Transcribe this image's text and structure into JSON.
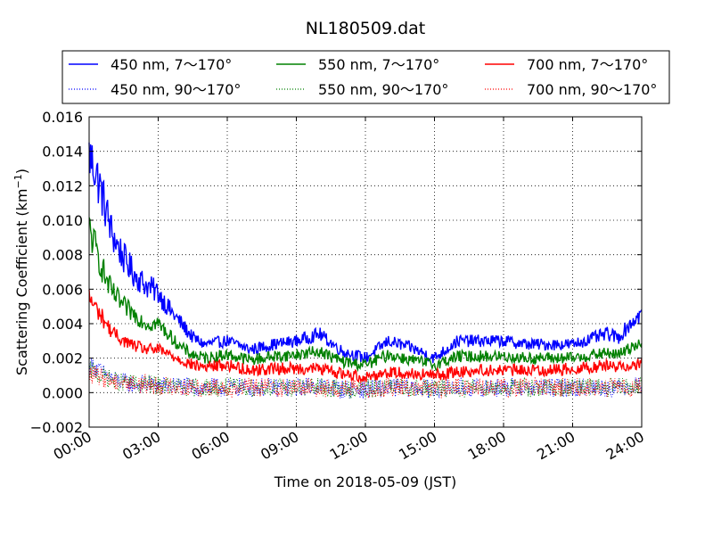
{
  "chart_data": {
    "type": "line",
    "title": "NL180509.dat",
    "xlabel": "Time on 2018-05-09 (JST)",
    "ylabel_main": "Scattering Coefficient (km",
    "ylabel_sup": "−1",
    "ylabel_close": ")",
    "xlim": [
      "00:00",
      "24:00"
    ],
    "ylim": [
      -0.002,
      0.016
    ],
    "x_ticks": [
      "00:00",
      "03:00",
      "06:00",
      "09:00",
      "12:00",
      "15:00",
      "18:00",
      "21:00",
      "24:00"
    ],
    "y_ticks": [
      -0.002,
      0.0,
      0.002,
      0.004,
      0.006,
      0.008,
      0.01,
      0.012,
      0.014,
      0.016
    ],
    "y_tick_labels": [
      "−0.002",
      "0.000",
      "0.002",
      "0.004",
      "0.006",
      "0.008",
      "0.010",
      "0.012",
      "0.014",
      "0.016"
    ],
    "grid": true,
    "legend_position": "top",
    "x_hours": [
      0,
      0.25,
      0.5,
      0.75,
      1,
      1.5,
      2,
      2.5,
      3,
      3.5,
      4,
      4.5,
      5,
      6,
      7,
      8,
      9,
      10,
      11,
      12,
      13,
      14,
      15,
      16,
      17,
      18,
      19,
      20,
      21,
      22,
      22.5,
      23,
      23.5,
      24
    ],
    "series": [
      {
        "name": "450 nm, 7～170°",
        "color": "#0000ff",
        "style": "solid",
        "values": [
          0.0138,
          0.013,
          0.0118,
          0.0105,
          0.0092,
          0.0078,
          0.0068,
          0.0062,
          0.0058,
          0.0048,
          0.004,
          0.0032,
          0.0028,
          0.003,
          0.0025,
          0.0028,
          0.003,
          0.0034,
          0.0024,
          0.002,
          0.003,
          0.0026,
          0.002,
          0.003,
          0.003,
          0.003,
          0.0028,
          0.0028,
          0.0028,
          0.0032,
          0.0034,
          0.0032,
          0.004,
          0.0046
        ]
      },
      {
        "name": "450 nm, 90～170°",
        "color": "#0000ff",
        "style": "dotted",
        "values": [
          0.0016,
          0.0015,
          0.0012,
          0.001,
          0.0008,
          0.0006,
          0.0005,
          0.0005,
          0.0004,
          0.0004,
          0.0004,
          0.0003,
          0.0003,
          0.0003,
          0.0003,
          0.0003,
          0.0003,
          0.0004,
          0.0002,
          0.0002,
          0.0003,
          0.0003,
          0.0002,
          0.0003,
          0.0003,
          0.0003,
          0.0003,
          0.0003,
          0.0003,
          0.0003,
          0.0003,
          0.0003,
          0.0004,
          0.0004
        ]
      },
      {
        "name": "550 nm, 7～170°",
        "color": "#008000",
        "style": "solid",
        "values": [
          0.0095,
          0.0085,
          0.0075,
          0.0065,
          0.0058,
          0.005,
          0.0045,
          0.004,
          0.004,
          0.0033,
          0.0026,
          0.0022,
          0.002,
          0.0022,
          0.0019,
          0.0021,
          0.0022,
          0.0024,
          0.0018,
          0.0016,
          0.0022,
          0.0019,
          0.0016,
          0.0021,
          0.0021,
          0.0021,
          0.002,
          0.002,
          0.002,
          0.0022,
          0.0023,
          0.0022,
          0.0026,
          0.003
        ]
      },
      {
        "name": "550 nm, 90～170°",
        "color": "#008000",
        "style": "dotted",
        "values": [
          0.0013,
          0.0012,
          0.001,
          0.0009,
          0.0007,
          0.0006,
          0.0005,
          0.0005,
          0.0004,
          0.0004,
          0.0003,
          0.0003,
          0.0003,
          0.0003,
          0.0003,
          0.0003,
          0.0003,
          0.0003,
          0.0002,
          0.0002,
          0.0003,
          0.0003,
          0.0002,
          0.0003,
          0.0003,
          0.0003,
          0.0003,
          0.0003,
          0.0003,
          0.0003,
          0.0003,
          0.0003,
          0.0003,
          0.0004
        ]
      },
      {
        "name": "700 nm, 7～170°",
        "color": "#ff0000",
        "style": "solid",
        "values": [
          0.0055,
          0.005,
          0.0045,
          0.004,
          0.0035,
          0.003,
          0.0027,
          0.0025,
          0.0025,
          0.0022,
          0.0019,
          0.0016,
          0.0015,
          0.0016,
          0.0013,
          0.0014,
          0.0014,
          0.0014,
          0.0011,
          0.0009,
          0.0012,
          0.0011,
          0.001,
          0.0012,
          0.0013,
          0.0013,
          0.0013,
          0.0013,
          0.0014,
          0.0015,
          0.0016,
          0.0015,
          0.0016,
          0.0017
        ]
      },
      {
        "name": "700 nm, 90～170°",
        "color": "#ff0000",
        "style": "dotted",
        "values": [
          0.0011,
          0.001,
          0.0009,
          0.0008,
          0.0007,
          0.0006,
          0.0005,
          0.0005,
          0.0004,
          0.0004,
          0.0003,
          0.0003,
          0.0003,
          0.0003,
          0.0003,
          0.0003,
          0.0003,
          0.0003,
          0.0002,
          0.0002,
          0.0003,
          0.0003,
          0.0002,
          0.0003,
          0.0003,
          0.0003,
          0.0003,
          0.0003,
          0.0003,
          0.0003,
          0.0003,
          0.0003,
          0.0003,
          0.0003
        ]
      }
    ]
  }
}
